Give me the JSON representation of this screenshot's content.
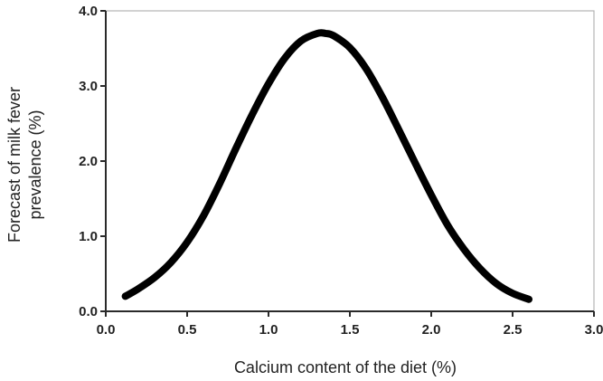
{
  "chart_data": {
    "type": "line",
    "title": "",
    "xlabel": "Calcium content of the diet (%)",
    "ylabel_lines": [
      "Forecast of milk fever",
      "prevalence (%)"
    ],
    "xlim": [
      0.0,
      3.0
    ],
    "ylim": [
      0.0,
      4.0
    ],
    "xticks": [
      {
        "value": 0.0,
        "label": "0.0"
      },
      {
        "value": 0.5,
        "label": "0.5"
      },
      {
        "value": 1.0,
        "label": "1.0"
      },
      {
        "value": 1.5,
        "label": "1.5"
      },
      {
        "value": 2.0,
        "label": "2.0"
      },
      {
        "value": 2.5,
        "label": "2.5"
      },
      {
        "value": 3.0,
        "label": "3.0"
      }
    ],
    "yticks": [
      {
        "value": 0.0,
        "label": "0.0"
      },
      {
        "value": 1.0,
        "label": "1.0"
      },
      {
        "value": 2.0,
        "label": "2.0"
      },
      {
        "value": 3.0,
        "label": "3.0"
      },
      {
        "value": 4.0,
        "label": "4.0"
      }
    ],
    "grid": false,
    "legend": "none",
    "line_color": "#000000",
    "series": [
      {
        "x": [
          0.12,
          0.2,
          0.3,
          0.4,
          0.5,
          0.6,
          0.7,
          0.8,
          0.9,
          1.0,
          1.1,
          1.2,
          1.3,
          1.35,
          1.4,
          1.5,
          1.6,
          1.7,
          1.8,
          1.9,
          2.0,
          2.1,
          2.2,
          2.3,
          2.4,
          2.5,
          2.6
        ],
        "y": [
          0.2,
          0.3,
          0.45,
          0.65,
          0.92,
          1.27,
          1.7,
          2.17,
          2.62,
          3.03,
          3.37,
          3.6,
          3.7,
          3.7,
          3.67,
          3.51,
          3.23,
          2.85,
          2.42,
          1.98,
          1.55,
          1.15,
          0.83,
          0.57,
          0.37,
          0.24,
          0.16
        ]
      }
    ]
  }
}
